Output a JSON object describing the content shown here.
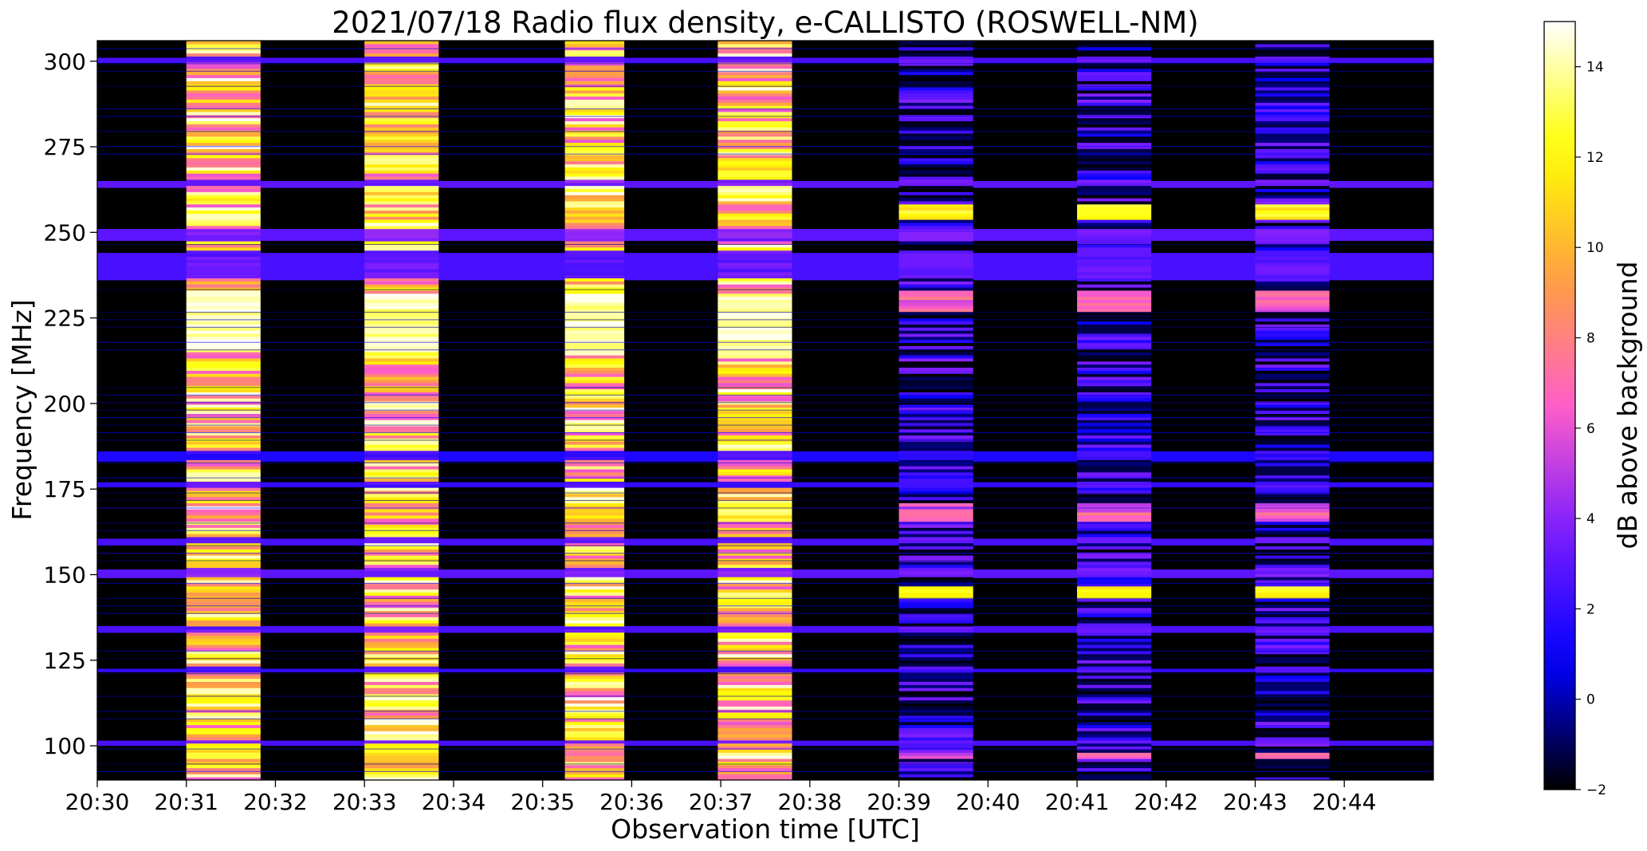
{
  "chart_data": {
    "type": "heatmap",
    "title": "2021/07/18  Radio flux density, e-CALLISTO (ROSWELL-NM)",
    "xlabel": "Observation time [UTC]",
    "ylabel": "Frequency [MHz]",
    "colorbar_label": "dB above background",
    "colormap": "gnuplot2",
    "colormap_stops": [
      "#000000",
      "#0000ff",
      "#7a1cff",
      "#ff5ec8",
      "#ffa040",
      "#ffff00",
      "#ffffff"
    ],
    "x_range": [
      "20:30",
      "20:45"
    ],
    "x_ticks": [
      "20:30",
      "20:31",
      "20:32",
      "20:33",
      "20:34",
      "20:35",
      "20:36",
      "20:37",
      "20:38",
      "20:39",
      "20:40",
      "20:41",
      "20:42",
      "20:43",
      "20:44"
    ],
    "ylim": [
      90,
      306
    ],
    "y_ticks": [
      100,
      125,
      150,
      175,
      200,
      225,
      250,
      275,
      300
    ],
    "clim": [
      -2,
      15
    ],
    "colorbar_ticks": [
      -2,
      0,
      2,
      4,
      6,
      8,
      10,
      12,
      14
    ],
    "grid": false,
    "time_bursts": [
      {
        "start": "20:31:00",
        "end": "20:31:50",
        "level": "high"
      },
      {
        "start": "20:33:00",
        "end": "20:33:50",
        "level": "high"
      },
      {
        "start": "20:35:15",
        "end": "20:35:55",
        "level": "high"
      },
      {
        "start": "20:36:58",
        "end": "20:37:48",
        "level": "high"
      },
      {
        "start": "20:39:00",
        "end": "20:39:50",
        "level": "moderate"
      },
      {
        "start": "20:41:00",
        "end": "20:41:50",
        "level": "moderate"
      },
      {
        "start": "20:43:00",
        "end": "20:43:50",
        "level": "moderate"
      }
    ],
    "background_bands_mhz": [
      {
        "from": 100,
        "to": 101.5,
        "db": 2.5
      },
      {
        "from": 121.5,
        "to": 122.5,
        "db": 2
      },
      {
        "from": 133,
        "to": 135,
        "db": 2.5
      },
      {
        "from": 149,
        "to": 151.5,
        "db": 3
      },
      {
        "from": 158.5,
        "to": 160.5,
        "db": 2.5
      },
      {
        "from": 175.5,
        "to": 177,
        "db": 2
      },
      {
        "from": 183,
        "to": 186,
        "db": 1.5
      },
      {
        "from": 236,
        "to": 244,
        "db": 2.5
      },
      {
        "from": 247.5,
        "to": 251,
        "db": 3
      },
      {
        "from": 263,
        "to": 265,
        "db": 3
      },
      {
        "from": 299.5,
        "to": 301,
        "db": 2.5
      }
    ]
  }
}
